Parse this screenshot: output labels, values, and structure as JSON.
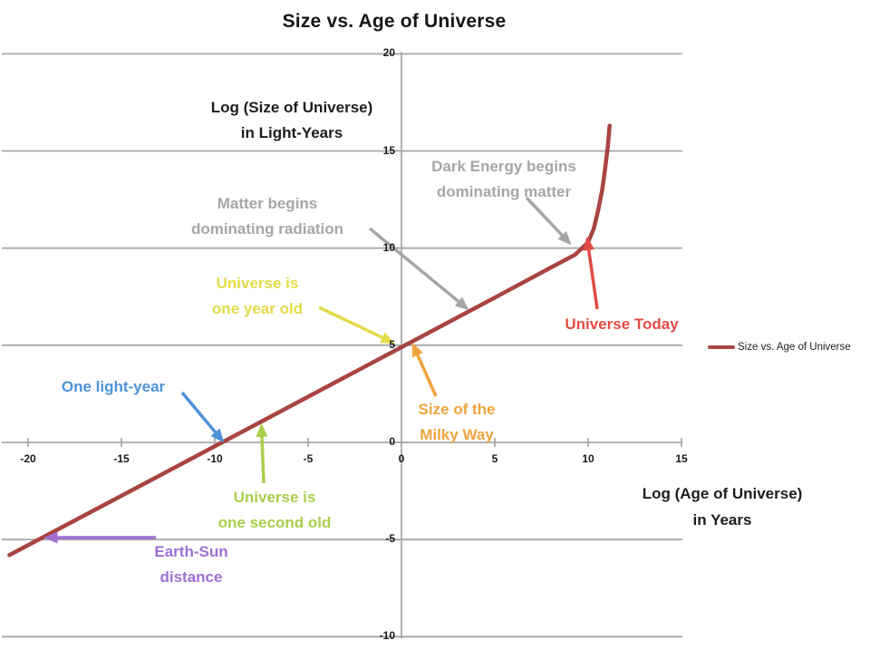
{
  "chart": {
    "title": "Size vs. Age of Universe",
    "y_axis_label": [
      "Log (Size of Universe)",
      "in Light-Years"
    ],
    "x_axis_label": [
      "Log (Age of Universe)",
      "in Years"
    ],
    "legend": {
      "label": "Size vs. Age of Universe"
    }
  },
  "chart_data": {
    "type": "line",
    "title": "Size vs. Age of Universe",
    "xlabel": "Log (Age of Universe) in Years",
    "ylabel": "Log (Size of Universe) in Light-Years",
    "xlim": [
      -21.5,
      15
    ],
    "ylim": [
      -10,
      20
    ],
    "x_ticks": [
      -20,
      -15,
      -10,
      -5,
      0,
      5,
      10,
      15
    ],
    "y_ticks": [
      20,
      15,
      10,
      5,
      0,
      -5,
      -10
    ],
    "grid": "horizontal-only",
    "legend_position": "right",
    "series": [
      {
        "name": "Size vs. Age of Universe",
        "color": "#A84441",
        "points": [
          [
            -21,
            -5.8
          ],
          [
            -15,
            -2.75
          ],
          [
            -10,
            -0.2
          ],
          [
            -5,
            2.35
          ],
          [
            0,
            4.9
          ],
          [
            5,
            7.45
          ],
          [
            8,
            9.0
          ],
          [
            9.3,
            9.66
          ],
          [
            10,
            10.3
          ],
          [
            10.3,
            11.0
          ],
          [
            10.55,
            12.0
          ],
          [
            10.75,
            13.0
          ],
          [
            10.9,
            14.0
          ],
          [
            11.05,
            15.2
          ],
          [
            11.15,
            16.3
          ]
        ]
      }
    ],
    "annotations": [
      {
        "id": "dark-energy",
        "lines": [
          "Dark Energy begins",
          "dominating matter"
        ],
        "color": "#A6A6A6",
        "target": [
          9.0,
          10.26
        ]
      },
      {
        "id": "matter-begins",
        "lines": [
          "Matter begins",
          "dominating radiation"
        ],
        "color": "#A6A6A6",
        "target": [
          3.5,
          6.9
        ]
      },
      {
        "id": "one-year",
        "lines": [
          "Universe is",
          "one year old"
        ],
        "color": "#E2DB49",
        "target": [
          -0.5,
          5.15
        ]
      },
      {
        "id": "milky-way",
        "lines": [
          "Size of the",
          "Milky Way"
        ],
        "color": "#EFA43E",
        "target": [
          0.63,
          5.0
        ]
      },
      {
        "id": "universe-today",
        "lines": [
          "Universe Today"
        ],
        "color": "#E24B45",
        "target": [
          9.95,
          10.45
        ]
      },
      {
        "id": "one-light-year",
        "lines": [
          "One light-year"
        ],
        "color": "#4E93D8",
        "target": [
          -9.6,
          0.1
        ]
      },
      {
        "id": "one-second",
        "lines": [
          "Universe is",
          "one second old"
        ],
        "color": "#A9CF4B",
        "target": [
          -7.5,
          0.85
        ]
      },
      {
        "id": "earth-sun",
        "lines": [
          "Earth-Sun",
          "distance"
        ],
        "color": "#9E70D2",
        "target": [
          -19.0,
          -4.9
        ]
      }
    ]
  }
}
